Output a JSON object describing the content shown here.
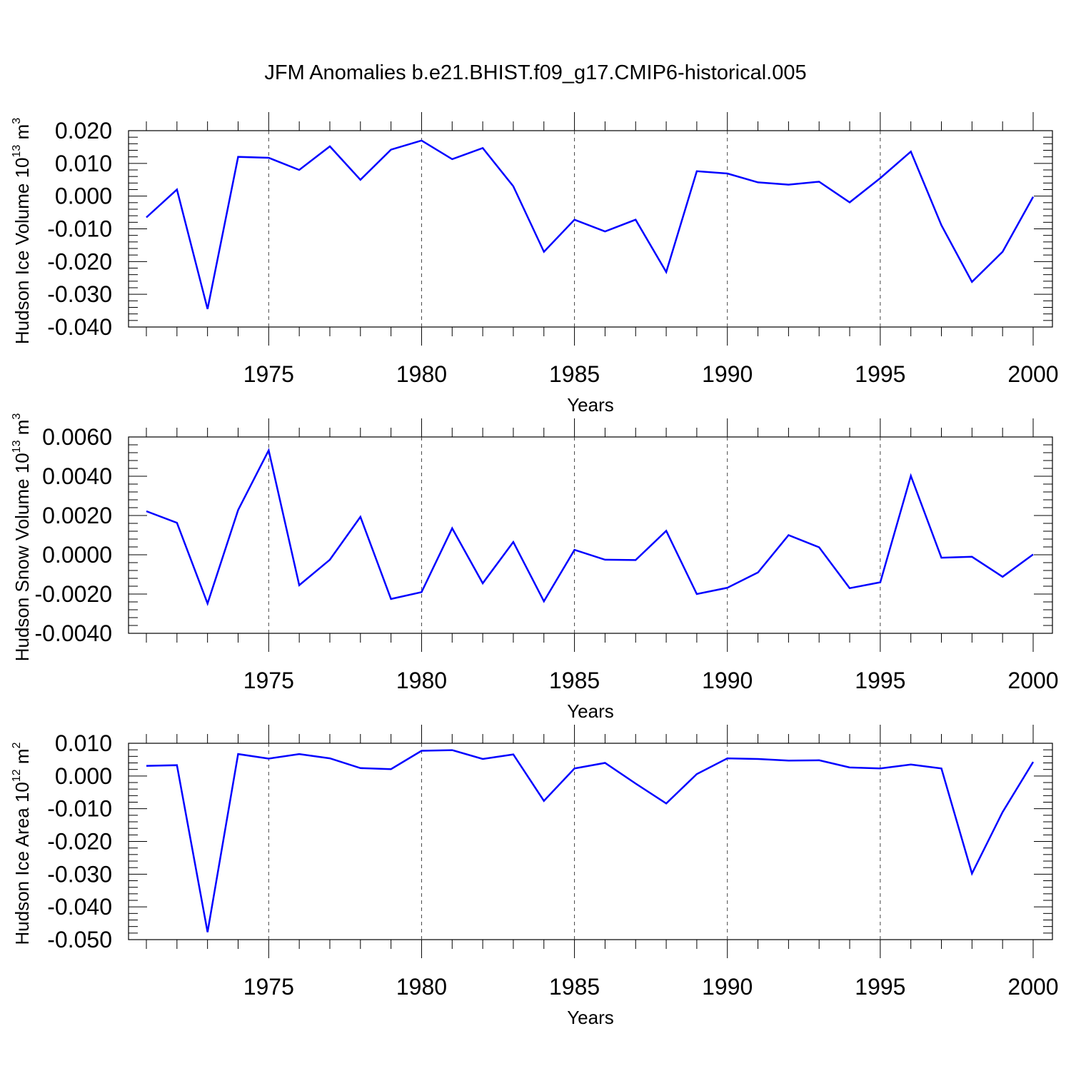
{
  "chart_data": {
    "title": "JFM Anomalies b.e21.BHIST.f09_g17.CMIP6-historical.005",
    "type": "line",
    "x": [
      1971,
      1972,
      1973,
      1974,
      1975,
      1976,
      1977,
      1978,
      1979,
      1980,
      1981,
      1982,
      1983,
      1984,
      1985,
      1986,
      1987,
      1988,
      1989,
      1990,
      1991,
      1992,
      1993,
      1994,
      1995,
      1996,
      1997,
      1998,
      1999,
      2000
    ],
    "xlim": [
      1971,
      2000
    ],
    "xticks": [
      1975,
      1980,
      1985,
      1990,
      1995,
      2000
    ],
    "xlabel": "Years",
    "line_color": "#0000ff",
    "panels": [
      {
        "name": "ice-volume",
        "ylabel": "Hudson Ice Volume 10",
        "ylabel_exp": "13",
        "ylabel_unit": " m",
        "ylabel_unit_exp": "3",
        "ylim": [
          -0.04,
          0.02
        ],
        "yticks": [
          0.02,
          0.01,
          0.0,
          -0.01,
          -0.02,
          -0.03,
          -0.04
        ],
        "ytick_labels": [
          "0.020",
          "0.010",
          "0.000",
          "-0.010",
          "-0.020",
          "-0.030",
          "-0.040"
        ],
        "values": [
          -0.0065,
          0.002,
          -0.0345,
          0.012,
          0.0117,
          0.008,
          0.0152,
          0.005,
          0.0142,
          0.017,
          0.0113,
          0.0147,
          0.003,
          -0.017,
          -0.0072,
          -0.0108,
          -0.0072,
          -0.0232,
          0.0076,
          0.0069,
          0.0042,
          0.0035,
          0.0044,
          -0.0019,
          0.0055,
          0.0136,
          -0.0089,
          -0.0262,
          -0.017,
          -0.0002
        ]
      },
      {
        "name": "snow-volume",
        "ylabel": "Hudson Snow Volume 10",
        "ylabel_exp": "13",
        "ylabel_unit": " m",
        "ylabel_unit_exp": "3",
        "ylim": [
          -0.004,
          0.006
        ],
        "yticks": [
          0.006,
          0.004,
          0.002,
          0.0,
          -0.002,
          -0.004
        ],
        "ytick_labels": [
          "0.0060",
          "0.0040",
          "0.0020",
          "0.0000",
          "-0.0020",
          "-0.0040"
        ],
        "values": [
          0.00222,
          0.00163,
          -0.00248,
          0.00228,
          0.00532,
          -0.00155,
          -0.00025,
          0.00193,
          -0.00225,
          -0.0019,
          0.00135,
          -0.00145,
          0.00065,
          -0.00237,
          0.00025,
          -0.00025,
          -0.00027,
          0.00122,
          -0.002,
          -0.00168,
          -0.0009,
          0.001,
          0.00038,
          -0.0017,
          -0.0014,
          0.00402,
          -0.00015,
          -0.0001,
          -0.00112,
          2e-05
        ]
      },
      {
        "name": "ice-area",
        "ylabel": "Hudson Ice Area 10",
        "ylabel_exp": "12",
        "ylabel_unit": " m",
        "ylabel_unit_exp": "2",
        "ylim": [
          -0.05,
          0.01
        ],
        "yticks": [
          0.01,
          0.0,
          -0.01,
          -0.02,
          -0.03,
          -0.04,
          -0.05
        ],
        "ytick_labels": [
          "0.010",
          "0.000",
          "-0.010",
          "-0.020",
          "-0.030",
          "-0.040",
          "-0.050"
        ],
        "values": [
          0.0031,
          0.0033,
          -0.0477,
          0.0067,
          0.0053,
          0.0067,
          0.0054,
          0.0024,
          0.0021,
          0.0077,
          0.0079,
          0.0052,
          0.0066,
          -0.0076,
          0.0023,
          0.004,
          -0.0023,
          -0.0084,
          0.0006,
          0.0054,
          0.0052,
          0.0047,
          0.0048,
          0.0026,
          0.0023,
          0.0035,
          0.0023,
          -0.0298,
          -0.011,
          0.0043
        ]
      }
    ]
  }
}
